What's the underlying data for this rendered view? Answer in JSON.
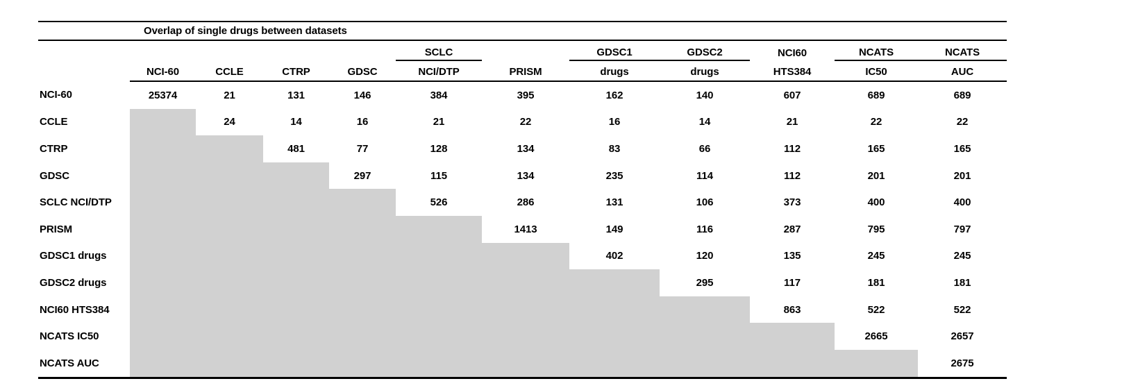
{
  "title": "Overlap of single drugs between datasets",
  "colors": {
    "lower_triangle_fill": "#d1d1d1",
    "rule_color": "#000000",
    "text_color": "#000000",
    "background": "#ffffff"
  },
  "table": {
    "columns": [
      {
        "top": "",
        "bottom": "NCI-60",
        "underline": false
      },
      {
        "top": "",
        "bottom": "CCLE",
        "underline": false
      },
      {
        "top": "",
        "bottom": "CTRP",
        "underline": false
      },
      {
        "top": "",
        "bottom": "GDSC",
        "underline": false
      },
      {
        "top": "SCLC",
        "bottom": "NCI/DTP",
        "underline": true
      },
      {
        "top": "",
        "bottom": "PRISM",
        "underline": false
      },
      {
        "top": "GDSC1",
        "bottom": "drugs",
        "underline": true
      },
      {
        "top": "GDSC2",
        "bottom": "drugs",
        "underline": true
      },
      {
        "top": "NCI60",
        "bottom": "HTS384",
        "underline": false
      },
      {
        "top": "NCATS",
        "bottom": "IC50",
        "underline": true
      },
      {
        "top": "NCATS",
        "bottom": "AUC",
        "underline": true
      }
    ],
    "rows": [
      {
        "label": "NCI-60",
        "values": [
          25374,
          21,
          131,
          146,
          384,
          395,
          162,
          140,
          607,
          689,
          689
        ]
      },
      {
        "label": "CCLE",
        "values": [
          null,
          24,
          14,
          16,
          21,
          22,
          16,
          14,
          21,
          22,
          22
        ]
      },
      {
        "label": "CTRP",
        "values": [
          null,
          null,
          481,
          77,
          128,
          134,
          83,
          66,
          112,
          165,
          165
        ]
      },
      {
        "label": "GDSC",
        "values": [
          null,
          null,
          null,
          297,
          115,
          134,
          235,
          114,
          112,
          201,
          201
        ]
      },
      {
        "label": "SCLC NCI/DTP",
        "values": [
          null,
          null,
          null,
          null,
          526,
          286,
          131,
          106,
          373,
          400,
          400
        ]
      },
      {
        "label": "PRISM",
        "values": [
          null,
          null,
          null,
          null,
          null,
          1413,
          149,
          116,
          287,
          795,
          797
        ]
      },
      {
        "label": "GDSC1 drugs",
        "values": [
          null,
          null,
          null,
          null,
          null,
          null,
          402,
          120,
          135,
          245,
          245
        ]
      },
      {
        "label": "GDSC2 drugs",
        "values": [
          null,
          null,
          null,
          null,
          null,
          null,
          null,
          295,
          117,
          181,
          181
        ]
      },
      {
        "label": "NCI60 HTS384",
        "values": [
          null,
          null,
          null,
          null,
          null,
          null,
          null,
          null,
          863,
          522,
          522
        ]
      },
      {
        "label": "NCATS IC50",
        "values": [
          null,
          null,
          null,
          null,
          null,
          null,
          null,
          null,
          null,
          2665,
          2657
        ]
      },
      {
        "label": "NCATS AUC",
        "values": [
          null,
          null,
          null,
          null,
          null,
          null,
          null,
          null,
          null,
          null,
          2675
        ]
      }
    ]
  }
}
